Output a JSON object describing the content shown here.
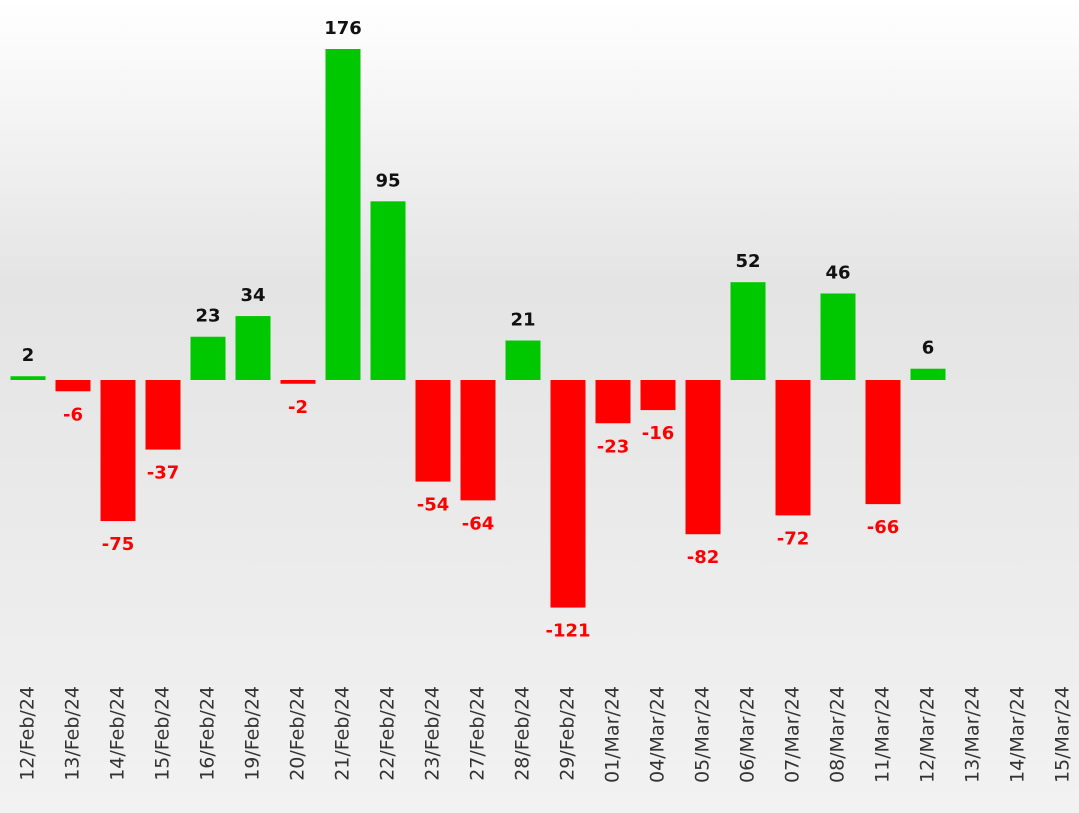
{
  "chart_data": {
    "type": "bar",
    "categories": [
      "12/Feb/24",
      "13/Feb/24",
      "14/Feb/24",
      "15/Feb/24",
      "16/Feb/24",
      "19/Feb/24",
      "20/Feb/24",
      "21/Feb/24",
      "22/Feb/24",
      "23/Feb/24",
      "27/Feb/24",
      "28/Feb/24",
      "29/Feb/24",
      "01/Mar/24",
      "04/Mar/24",
      "05/Mar/24",
      "06/Mar/24",
      "07/Mar/24",
      "08/Mar/24",
      "11/Mar/24",
      "12/Mar/24",
      "13/Mar/24",
      "14/Mar/24",
      "15/Mar/24"
    ],
    "values": [
      2,
      -6,
      -75,
      -37,
      23,
      34,
      -2,
      176,
      95,
      -54,
      -64,
      21,
      -121,
      -23,
      -16,
      -82,
      52,
      -72,
      46,
      -66,
      6,
      null,
      null,
      null
    ],
    "positive_color": "#00c800",
    "negative_color": "#ff0000",
    "grid": false
  }
}
